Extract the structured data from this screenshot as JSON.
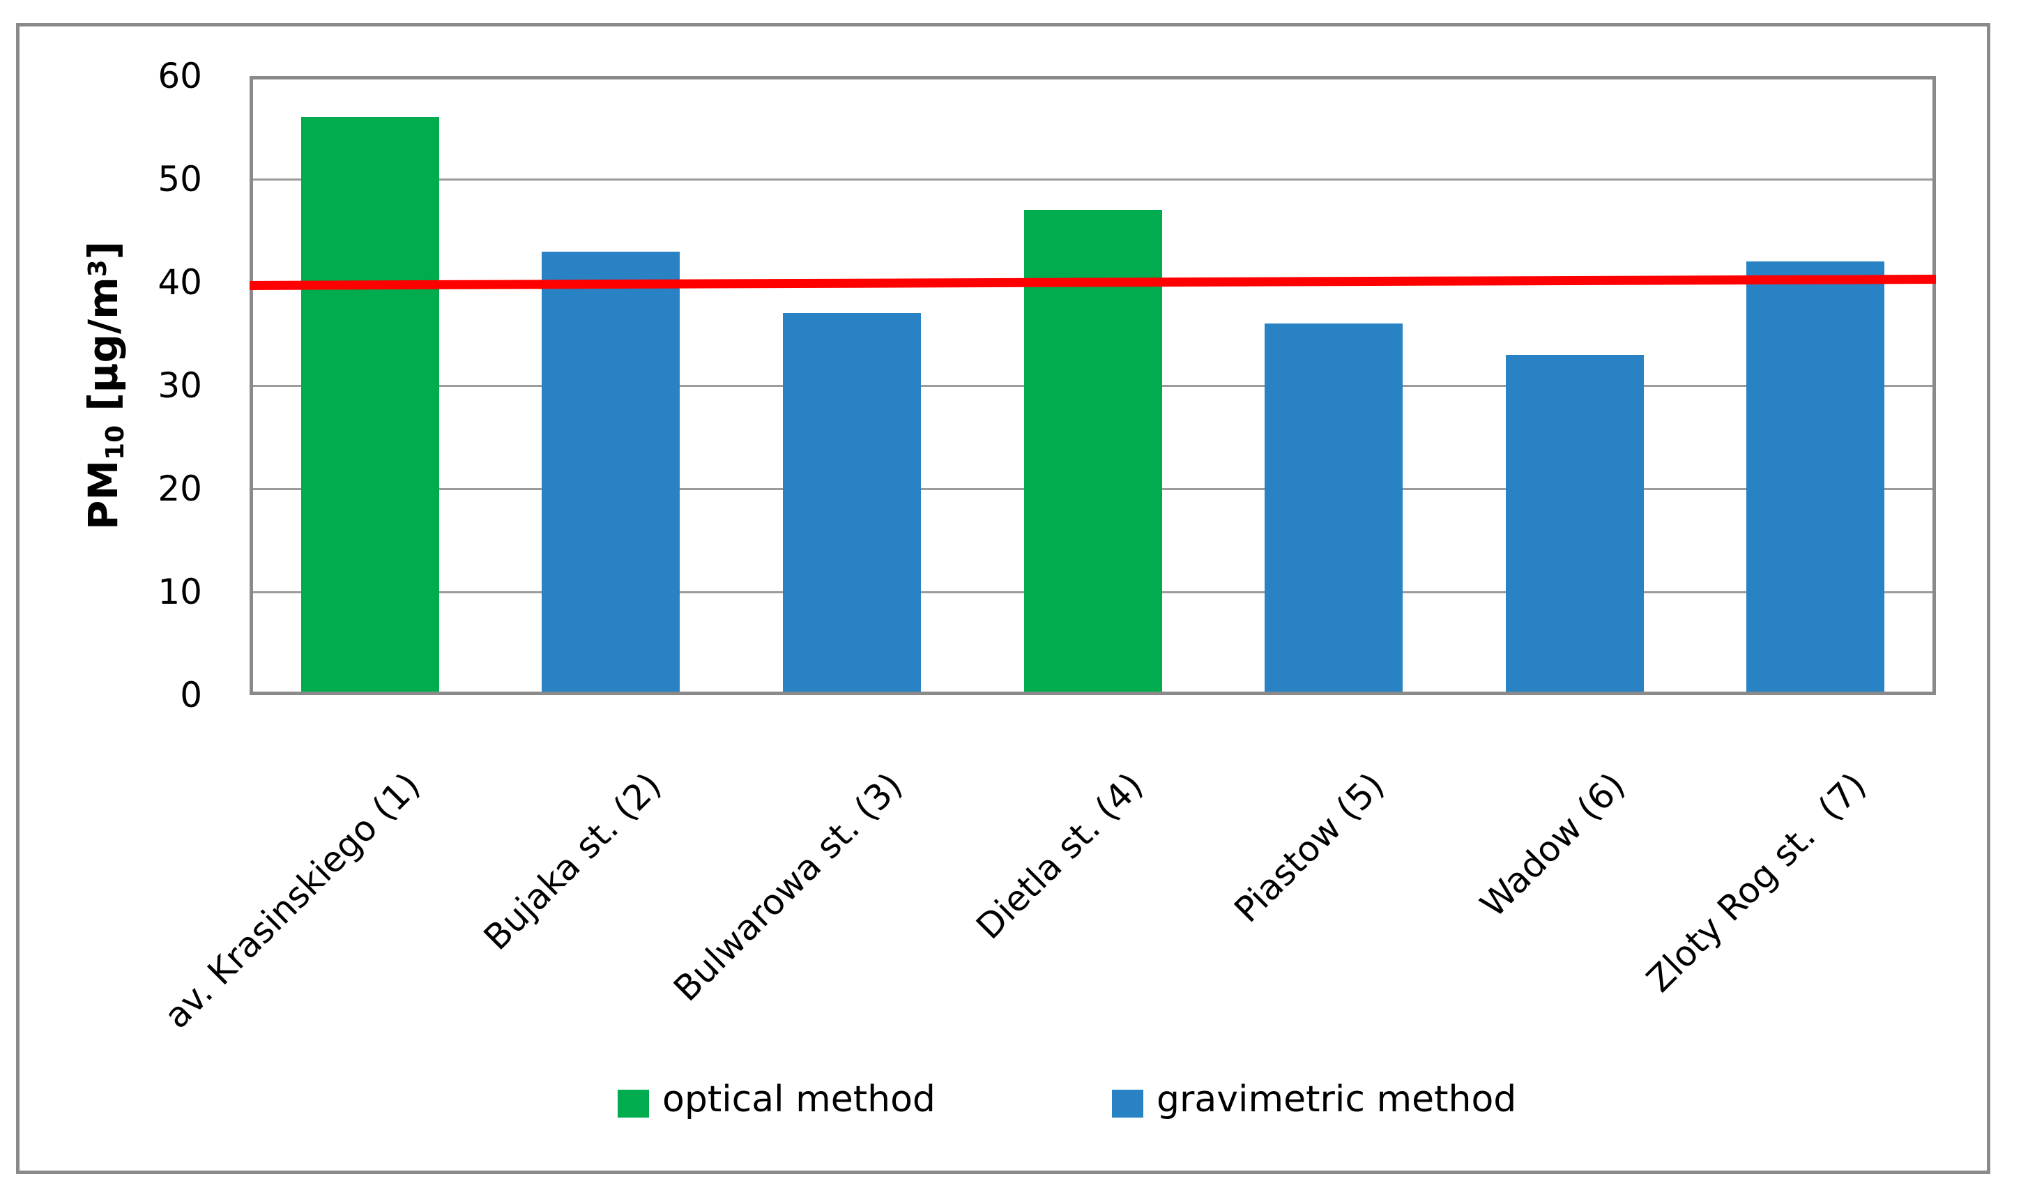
{
  "figure": {
    "background_color": "#FFFFFF",
    "border_color": "#8A8A8A"
  },
  "chart_data": {
    "type": "bar",
    "title": "",
    "ylabel": {
      "base": "PM",
      "subscript": "10",
      "unit_open": " [µg/m",
      "superscript": "3",
      "unit_close": "]"
    },
    "ylim": [
      0,
      60
    ],
    "yticks": [
      0,
      10,
      20,
      30,
      40,
      50,
      60
    ],
    "grid": true,
    "gridline_color": "#9B9B9B",
    "axis_color": "#8A8A8A",
    "categories": [
      "av. Krasinskiego (1)",
      "Bujaka st. (2)",
      "Bulwarowa st. (3)",
      "Dietla st. (4)",
      "Piastow (5)",
      "Wadow (6)",
      "Zloty Rog st.  (7)"
    ],
    "values": [
      56,
      43,
      37,
      47,
      36,
      33,
      42
    ],
    "methods": [
      "optical",
      "gravimetric",
      "gravimetric",
      "optical",
      "gravimetric",
      "gravimetric",
      "gravimetric"
    ],
    "series_colors": {
      "optical": "#00AC4E",
      "gravimetric": "#2882C4"
    },
    "reference_line": {
      "value": 40,
      "start_value": 39.7,
      "end_value": 40.3,
      "color": "#FF0000"
    },
    "legend_position": "bottom"
  },
  "legend": {
    "items": [
      {
        "label": "optical method",
        "method": "optical",
        "color": "#00AC4E"
      },
      {
        "label": "gravimetric method",
        "method": "gravimetric",
        "color": "#2882C4"
      }
    ]
  }
}
